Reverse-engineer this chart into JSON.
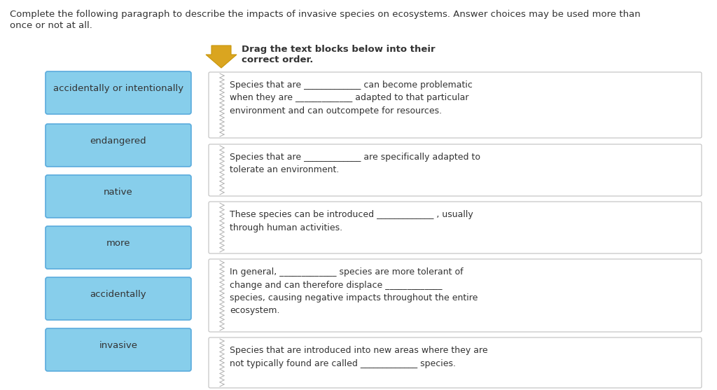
{
  "background_color": "#ffffff",
  "instruction_text_line1": "Complete the following paragraph to describe the impacts of invasive species on ecosystems. Answer choices may be used more than",
  "instruction_text_line2": "once or not at all.",
  "drag_instruction_line1": "Drag the text blocks below into their",
  "drag_instruction_line2": "correct order.",
  "left_boxes": [
    "accidentally or intentionally",
    "endangered",
    "native",
    "more",
    "accidentally",
    "invasive"
  ],
  "left_box_color": "#87CEEB",
  "left_box_border_color": "#5aabdd",
  "right_boxes": [
    "Species that are _____________ can become problematic\nwhen they are _____________ adapted to that particular\nenvironment and can outcompete for resources.",
    "Species that are _____________ are specifically adapted to\ntolerate an environment.",
    "These species can be introduced _____________ , usually\nthrough human activities.",
    "In general, _____________ species are more tolerant of\nchange and can therefore displace _____________\nspecies, causing negative impacts throughout the entire\necosystem.",
    "Species that are introduced into new areas where they are\nnot typically found are called _____________ species."
  ],
  "arrow_color": "#DAA520",
  "arrow_edge_color": "#c8960a",
  "text_color": "#333333",
  "font_size_instruction": 9.5,
  "font_size_label": 9.5,
  "font_size_box_text": 9.0,
  "font_size_drag": 9.5
}
